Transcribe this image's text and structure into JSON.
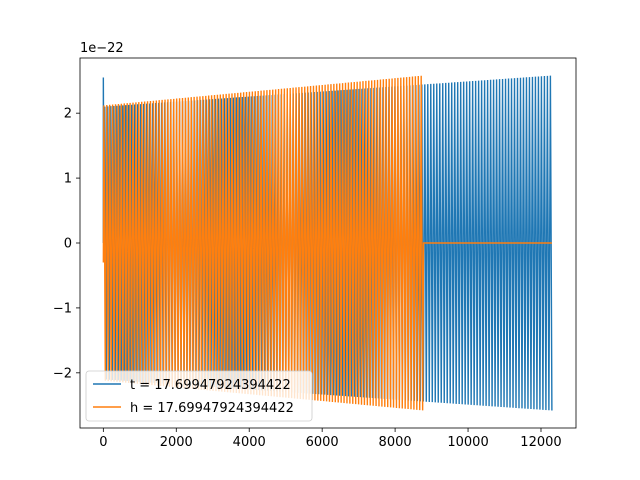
{
  "chart_data": {
    "type": "line",
    "title": "",
    "xlabel": "",
    "ylabel": "",
    "y_offset_text": "1e−22",
    "xlim": [
      -640,
      12960
    ],
    "ylim": [
      -2.85,
      2.85
    ],
    "x_ticks": [
      0,
      2000,
      4000,
      6000,
      8000,
      10000,
      12000
    ],
    "x_tick_labels": [
      "0",
      "2000",
      "4000",
      "6000",
      "8000",
      "10000",
      "12000"
    ],
    "y_ticks": [
      -2,
      -1,
      0,
      1,
      2
    ],
    "y_tick_labels": [
      "−2",
      "−1",
      "0",
      "1",
      "2"
    ],
    "grid": false,
    "legend_position": "lower-left",
    "series": [
      {
        "name": "t = 17.69947924394422",
        "color": "#1f77b4",
        "description_values": {
          "x_start": 0,
          "x_end": 12300,
          "initial_spike": 2.55,
          "amplitude_start": 2.1,
          "amplitude_end": 2.58,
          "cycles": 150
        }
      },
      {
        "name": "h = 17.69947924394422",
        "color": "#ff7f0e",
        "description_values": {
          "x_start": 0,
          "x_end": 8780,
          "x_flat_end": 12300,
          "amplitude_start": 2.12,
          "amplitude_end": 2.58,
          "cycles": 110
        }
      }
    ]
  }
}
